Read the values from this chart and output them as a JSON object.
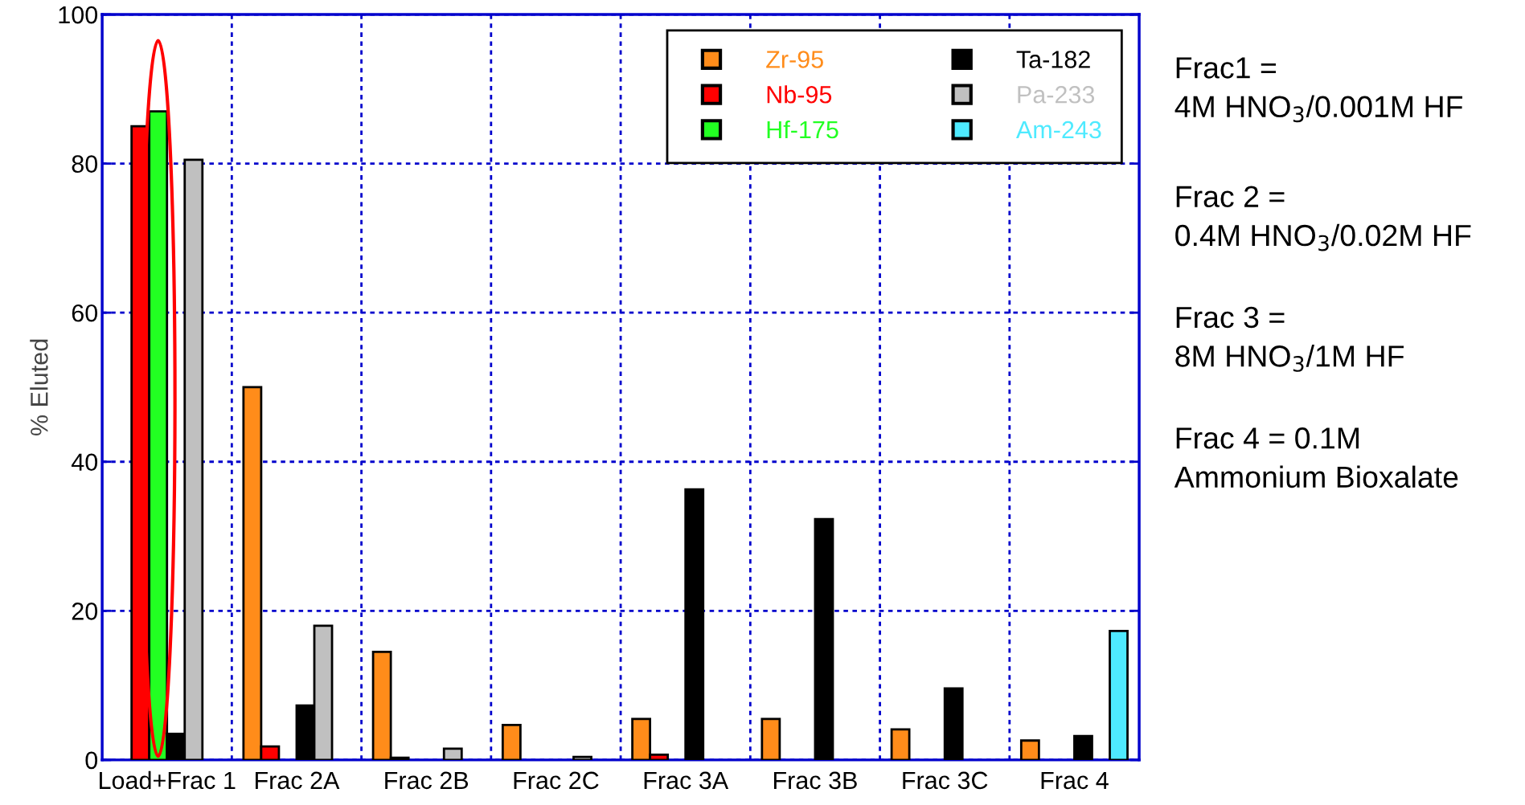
{
  "chart_data": {
    "type": "bar",
    "ylabel": "% Eluted",
    "categories": [
      "Load+Frac 1",
      "Frac 2A",
      "Frac 2B",
      "Frac 2C",
      "Frac 3A",
      "Frac 3B",
      "Frac 3C",
      "Frac 4"
    ],
    "series": [
      {
        "name": "Zr-95",
        "color": "#ff8c1a",
        "values": [
          null,
          50,
          14.5,
          4.7,
          5.5,
          5.5,
          4.1,
          2.6
        ]
      },
      {
        "name": "Nb-95",
        "color": "#ff0000",
        "values": [
          85,
          1.8,
          0.3,
          null,
          0.7,
          null,
          null,
          null
        ]
      },
      {
        "name": "Hf-175",
        "color": "#22ff22",
        "values": [
          87,
          null,
          null,
          null,
          null,
          null,
          null,
          null
        ]
      },
      {
        "name": "Ta-182",
        "color": "#000000",
        "values": [
          3.5,
          7.3,
          null,
          null,
          36.3,
          32.3,
          9.6,
          3.2
        ]
      },
      {
        "name": "Pa-233",
        "color": "#c0c0c0",
        "values": [
          80.5,
          18,
          1.5,
          0.4,
          null,
          null,
          null,
          null
        ]
      },
      {
        "name": "Am-243",
        "color": "#4eeaff",
        "values": [
          null,
          null,
          null,
          null,
          null,
          null,
          null,
          17.3
        ]
      }
    ],
    "ylim": [
      0,
      100
    ],
    "yticks": [
      0,
      20,
      40,
      60,
      80,
      100
    ],
    "grid": true,
    "legend": "top right",
    "annotations": [
      "Frac1 =\n4M HNO$_{3}$/0.001M HF",
      "Frac 2 =\n0.4M HNO$_{3}$/0.02M HF",
      "Frac 3 =\n8M HNO$_{3}$/1M HF",
      "Frac 4 = 0.1M\nAmmonium Bioxalate"
    ]
  }
}
